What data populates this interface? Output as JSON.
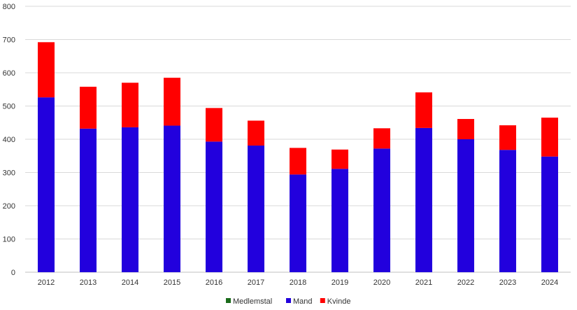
{
  "chart_data": {
    "type": "bar",
    "stacked": true,
    "categories": [
      "2012",
      "2013",
      "2014",
      "2015",
      "2016",
      "2017",
      "2018",
      "2019",
      "2020",
      "2021",
      "2022",
      "2023",
      "2024"
    ],
    "series": [
      {
        "name": "Medlemstal",
        "color": "#1a6b1a",
        "values": [
          0,
          0,
          0,
          0,
          0,
          0,
          0,
          0,
          0,
          0,
          0,
          0,
          0
        ]
      },
      {
        "name": "Mand",
        "color": "#2200dd",
        "values": [
          526,
          432,
          436,
          441,
          393,
          381,
          294,
          311,
          372,
          434,
          400,
          368,
          348
        ]
      },
      {
        "name": "Kvinde",
        "color": "#ff0000",
        "values": [
          166,
          126,
          134,
          144,
          101,
          75,
          80,
          58,
          61,
          107,
          61,
          74,
          117
        ]
      }
    ],
    "ylim": [
      0,
      800
    ],
    "yticks": [
      0,
      100,
      200,
      300,
      400,
      500,
      600,
      700,
      800
    ],
    "grid": true,
    "legend_position": "bottom"
  }
}
